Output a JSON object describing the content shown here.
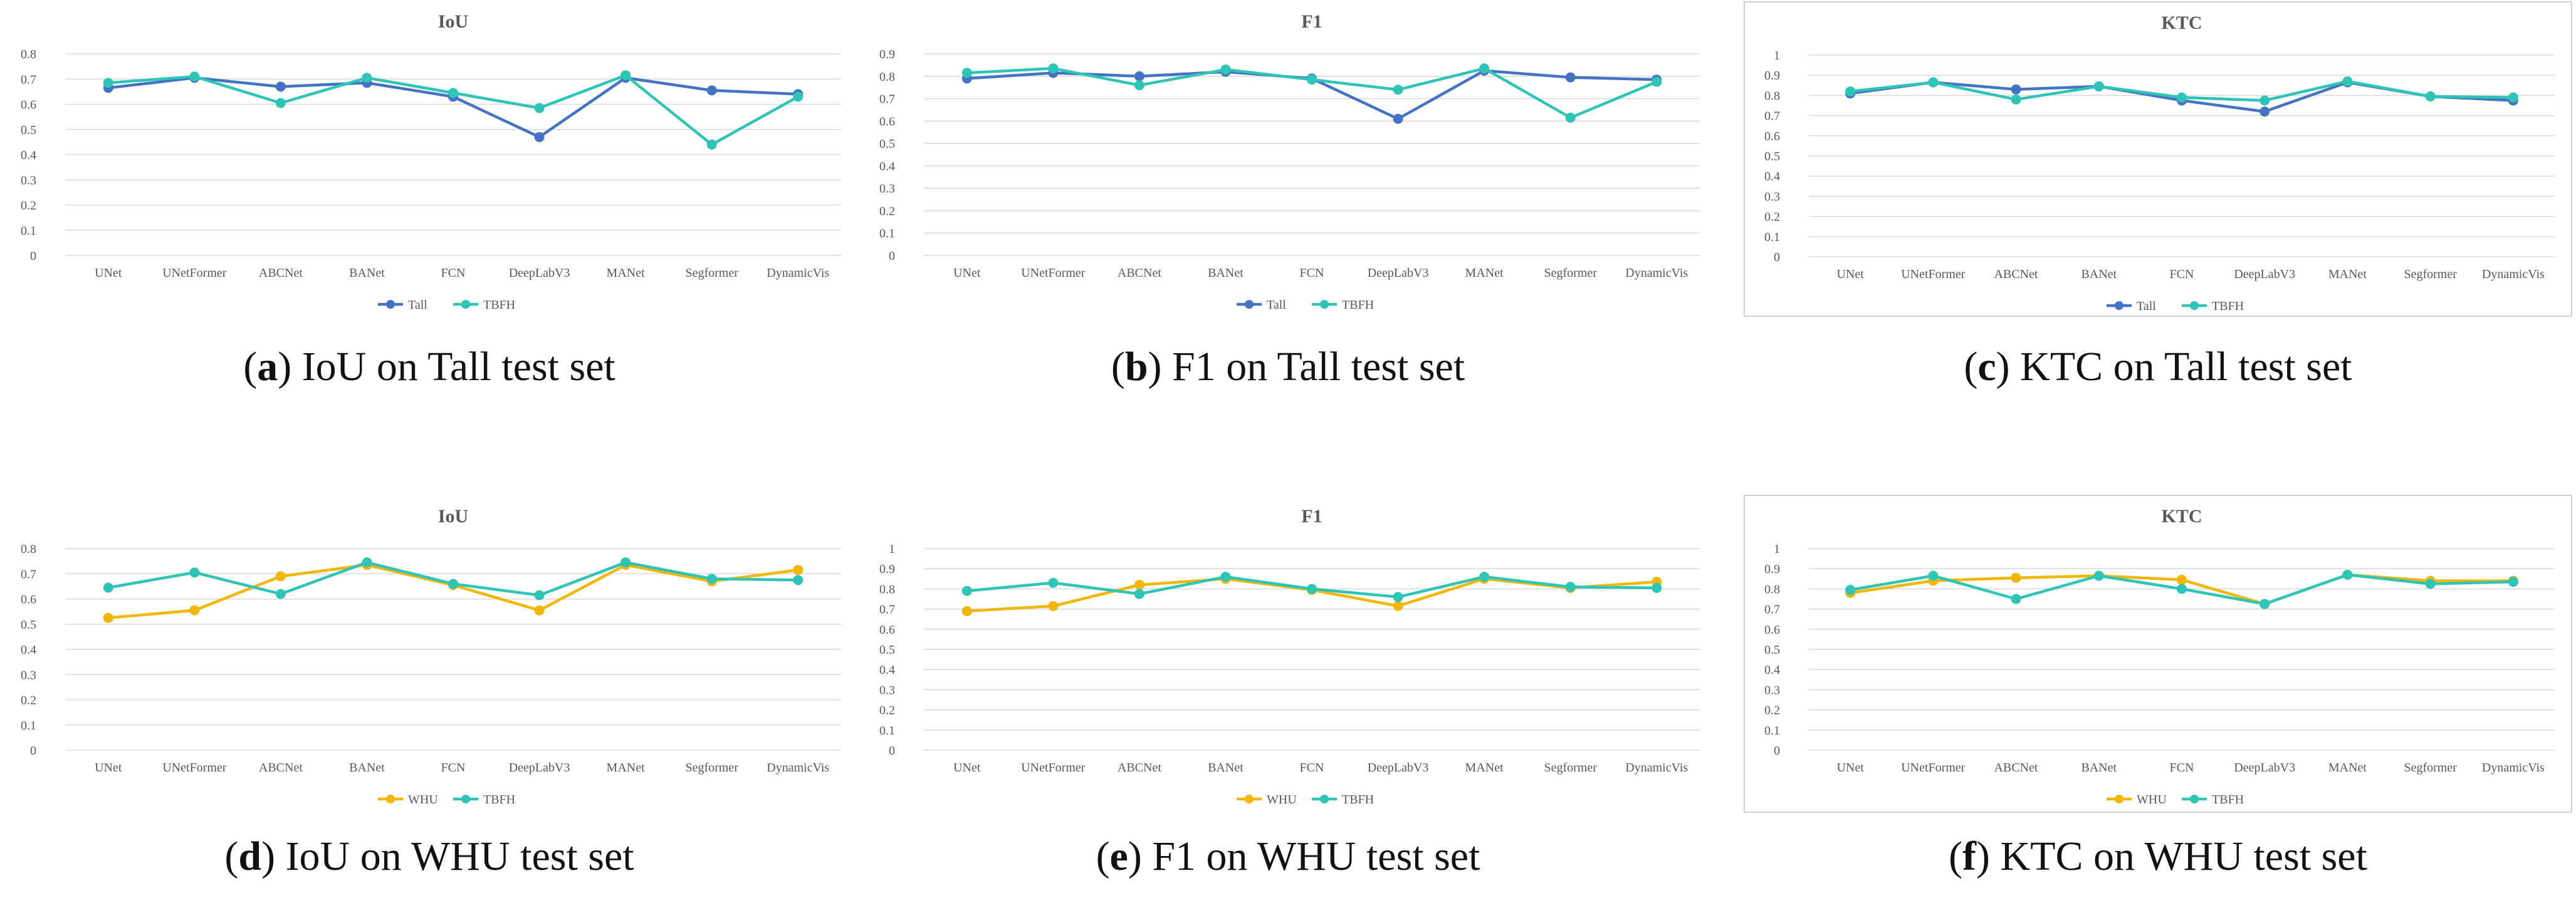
{
  "colors": {
    "tall": "#4472C4",
    "whu": "#F2B705",
    "tbfh": "#2EC4B6",
    "grid": "#d9d9d9",
    "axis_text": "#595959"
  },
  "chart_data": [
    {
      "id": "a",
      "type": "line",
      "title": "IoU",
      "categories": [
        "UNet",
        "UNetFormer",
        "ABCNet",
        "BANet",
        "FCN",
        "DeepLabV3",
        "MANet",
        "Segformer",
        "DynamicVis"
      ],
      "ylim": [
        0,
        0.8
      ],
      "yticks": [
        "0",
        "0.1",
        "0.2",
        "0.3",
        "0.4",
        "0.5",
        "0.6",
        "0.7",
        "0.8"
      ],
      "ystep": 0.1,
      "legend_position": "bottom",
      "series": [
        {
          "name": "Tall",
          "color_key": "tall",
          "values": [
            0.665,
            0.705,
            0.67,
            0.685,
            0.63,
            0.47,
            0.705,
            0.655,
            0.64
          ]
        },
        {
          "name": "TBFH",
          "color_key": "tbfh",
          "values": [
            0.685,
            0.71,
            0.605,
            0.705,
            0.645,
            0.585,
            0.715,
            0.44,
            0.63
          ]
        }
      ],
      "caption": {
        "label": "a",
        "text": "IoU on Tall test set"
      }
    },
    {
      "id": "b",
      "type": "line",
      "title": "F1",
      "categories": [
        "UNet",
        "UNetFormer",
        "ABCNet",
        "BANet",
        "FCN",
        "DeepLabV3",
        "MANet",
        "Segformer",
        "DynamicVis"
      ],
      "ylim": [
        0,
        0.9
      ],
      "yticks": [
        "0",
        "0.1",
        "0.2",
        "0.3",
        "0.4",
        "0.5",
        "0.6",
        "0.7",
        "0.8",
        "0.9"
      ],
      "ystep": 0.1,
      "legend_position": "bottom",
      "series": [
        {
          "name": "Tall",
          "color_key": "tall",
          "values": [
            0.79,
            0.815,
            0.8,
            0.82,
            0.79,
            0.61,
            0.825,
            0.795,
            0.785
          ]
        },
        {
          "name": "TBFH",
          "color_key": "tbfh",
          "values": [
            0.815,
            0.835,
            0.76,
            0.83,
            0.785,
            0.74,
            0.835,
            0.615,
            0.775
          ]
        }
      ],
      "caption": {
        "label": "b",
        "text": "F1 on Tall test set"
      }
    },
    {
      "id": "c",
      "type": "line",
      "title": "KTC",
      "categories": [
        "UNet",
        "UNetFormer",
        "ABCNet",
        "BANet",
        "FCN",
        "DeepLabV3",
        "MANet",
        "Segformer",
        "DynamicVis"
      ],
      "ylim": [
        0,
        1
      ],
      "yticks": [
        "0",
        "0.1",
        "0.2",
        "0.3",
        "0.4",
        "0.5",
        "0.6",
        "0.7",
        "0.8",
        "0.9",
        "1"
      ],
      "ystep": 0.1,
      "legend_position": "bottom",
      "series": [
        {
          "name": "Tall",
          "color_key": "tall",
          "values": [
            0.81,
            0.865,
            0.83,
            0.845,
            0.775,
            0.72,
            0.865,
            0.795,
            0.775
          ]
        },
        {
          "name": "TBFH",
          "color_key": "tbfh",
          "values": [
            0.82,
            0.865,
            0.78,
            0.845,
            0.79,
            0.775,
            0.87,
            0.795,
            0.79
          ]
        }
      ],
      "caption": {
        "label": "c",
        "text": "KTC on Tall test set"
      }
    },
    {
      "id": "d",
      "type": "line",
      "title": "IoU",
      "categories": [
        "UNet",
        "UNetFormer",
        "ABCNet",
        "BANet",
        "FCN",
        "DeepLabV3",
        "MANet",
        "Segformer",
        "DynamicVis"
      ],
      "ylim": [
        0,
        0.8
      ],
      "yticks": [
        "0",
        "0.1",
        "0.2",
        "0.3",
        "0.4",
        "0.5",
        "0.6",
        "0.7",
        "0.8"
      ],
      "ystep": 0.1,
      "legend_position": "bottom",
      "series": [
        {
          "name": "WHU",
          "color_key": "whu",
          "values": [
            0.525,
            0.555,
            0.69,
            0.735,
            0.655,
            0.555,
            0.735,
            0.67,
            0.715
          ]
        },
        {
          "name": "TBFH",
          "color_key": "tbfh",
          "values": [
            0.645,
            0.705,
            0.62,
            0.745,
            0.66,
            0.615,
            0.745,
            0.68,
            0.675
          ]
        }
      ],
      "caption": {
        "label": "d",
        "text": "IoU on WHU test set"
      }
    },
    {
      "id": "e",
      "type": "line",
      "title": "F1",
      "categories": [
        "UNet",
        "UNetFormer",
        "ABCNet",
        "BANet",
        "FCN",
        "DeepLabV3",
        "MANet",
        "Segformer",
        "DynamicVis"
      ],
      "ylim": [
        0,
        1
      ],
      "yticks": [
        "0",
        "0.1",
        "0.2",
        "0.3",
        "0.4",
        "0.5",
        "0.6",
        "0.7",
        "0.8",
        "0.9",
        "1"
      ],
      "ystep": 0.1,
      "legend_position": "bottom",
      "series": [
        {
          "name": "WHU",
          "color_key": "whu",
          "values": [
            0.69,
            0.715,
            0.82,
            0.85,
            0.795,
            0.715,
            0.85,
            0.805,
            0.835
          ]
        },
        {
          "name": "TBFH",
          "color_key": "tbfh",
          "values": [
            0.79,
            0.83,
            0.775,
            0.86,
            0.8,
            0.76,
            0.86,
            0.81,
            0.805
          ]
        }
      ],
      "caption": {
        "label": "e",
        "text": "F1 on WHU test set"
      }
    },
    {
      "id": "f",
      "type": "line",
      "title": "KTC",
      "categories": [
        "UNet",
        "UNetFormer",
        "ABCNet",
        "BANet",
        "FCN",
        "DeepLabV3",
        "MANet",
        "Segformer",
        "DynamicVis"
      ],
      "ylim": [
        0,
        1
      ],
      "yticks": [
        "0",
        "0.1",
        "0.2",
        "0.3",
        "0.4",
        "0.5",
        "0.6",
        "0.7",
        "0.8",
        "0.9",
        "1"
      ],
      "ystep": 0.1,
      "legend_position": "bottom",
      "series": [
        {
          "name": "WHU",
          "color_key": "whu",
          "values": [
            0.78,
            0.84,
            0.855,
            0.865,
            0.845,
            0.725,
            0.87,
            0.84,
            0.84
          ]
        },
        {
          "name": "TBFH",
          "color_key": "tbfh",
          "values": [
            0.795,
            0.865,
            0.75,
            0.865,
            0.8,
            0.725,
            0.87,
            0.825,
            0.835
          ]
        }
      ],
      "caption": {
        "label": "f",
        "text": "KTC on WHU test set"
      }
    }
  ]
}
